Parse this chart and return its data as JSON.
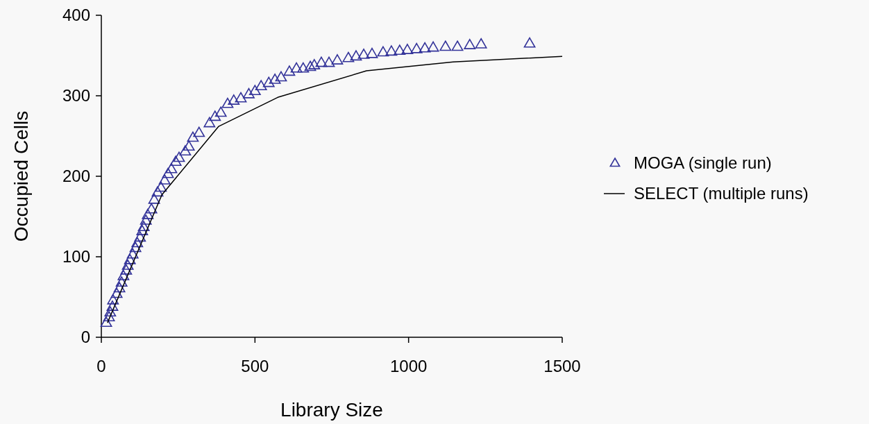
{
  "chart_data": {
    "type": "scatter",
    "xlabel": "Library Size",
    "ylabel": "Occupied Cells",
    "xlim": [
      0,
      1500
    ],
    "xticks": [
      0,
      500,
      1000,
      1500
    ],
    "ylim": [
      0,
      400
    ],
    "yticks": [
      0,
      100,
      200,
      300,
      400
    ],
    "grid": false,
    "legend": "right",
    "series": [
      {
        "name": "MOGA (single run)",
        "marker": "triangle",
        "color": "#333399",
        "x": [
          16,
          25,
          29,
          36,
          38,
          50,
          59,
          66,
          72,
          81,
          86,
          93,
          102,
          111,
          117,
          126,
          133,
          138,
          145,
          151,
          163,
          172,
          183,
          194,
          206,
          217,
          228,
          242,
          253,
          273,
          285,
          298,
          318,
          352,
          370,
          389,
          411,
          431,
          454,
          480,
          500,
          520,
          545,
          565,
          585,
          612,
          635,
          657,
          680,
          693,
          716,
          741,
          768,
          804,
          829,
          854,
          881,
          917,
          944,
          971,
          996,
          1026,
          1053,
          1080,
          1120,
          1159,
          1199,
          1236,
          1394
        ],
        "values": [
          18,
          25,
          31,
          38,
          46,
          54,
          61,
          68,
          76,
          83,
          89,
          96,
          103,
          111,
          117,
          124,
          132,
          137,
          145,
          152,
          159,
          171,
          180,
          186,
          195,
          203,
          209,
          218,
          223,
          231,
          237,
          248,
          254,
          266,
          274,
          279,
          290,
          294,
          297,
          302,
          306,
          312,
          316,
          320,
          323,
          330,
          334,
          334,
          336,
          338,
          341,
          341,
          344,
          347,
          349,
          351,
          352,
          354,
          355,
          356,
          357,
          358,
          359,
          360,
          361,
          361,
          363,
          364,
          365
        ]
      },
      {
        "name": "SELECT (multiple runs)",
        "type": "line",
        "marker": "none",
        "line_style": "solid",
        "color": "#000000",
        "x": [
          20,
          197,
          382,
          574,
          863,
          1145,
          1500
        ],
        "values": [
          18,
          177,
          262,
          298,
          331,
          342,
          349
        ]
      }
    ]
  }
}
